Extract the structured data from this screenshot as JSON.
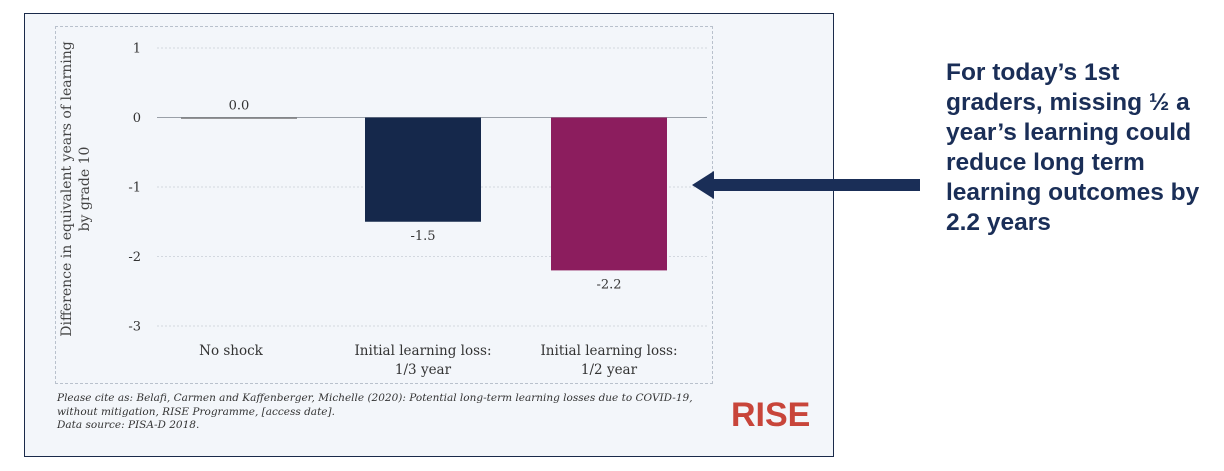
{
  "chart_data": {
    "type": "bar",
    "categories": [
      [
        "No shock"
      ],
      [
        "Initial learning loss:",
        "1/3 year"
      ],
      [
        "Initial learning loss:",
        "1/2 year"
      ]
    ],
    "values": [
      0.0,
      -1.5,
      -2.2
    ],
    "value_labels": [
      "0.0",
      "-1.5",
      "-2.2"
    ],
    "bar_colors": [
      "#6b6b6b",
      "#15284b",
      "#8c1d5e"
    ],
    "ylabel": [
      "Difference in equivalent years of learning",
      "by grade 10"
    ],
    "yticks": [
      1,
      0,
      -1,
      -2,
      -3
    ],
    "ylim": [
      -3,
      1
    ],
    "grid": "horizontal"
  },
  "citation": {
    "line1": "Please cite as: Belafi, Carmen and Kaffenberger, Michelle (2020): Potential long-term learning losses due to COVID-19,",
    "line2": "without mitigation, RISE Programme, [access date].",
    "line3": "Data source: PISA-D 2018."
  },
  "logo": {
    "text": "RISE",
    "color": "#c8453a"
  },
  "callout": {
    "text": "For today’s 1st graders, missing ½ a year’s learning could reduce long term learning outcomes by 2.2 years",
    "color": "#1a2e57"
  },
  "arrow": {
    "icon": "left-arrow-icon",
    "color": "#1a2e57"
  }
}
